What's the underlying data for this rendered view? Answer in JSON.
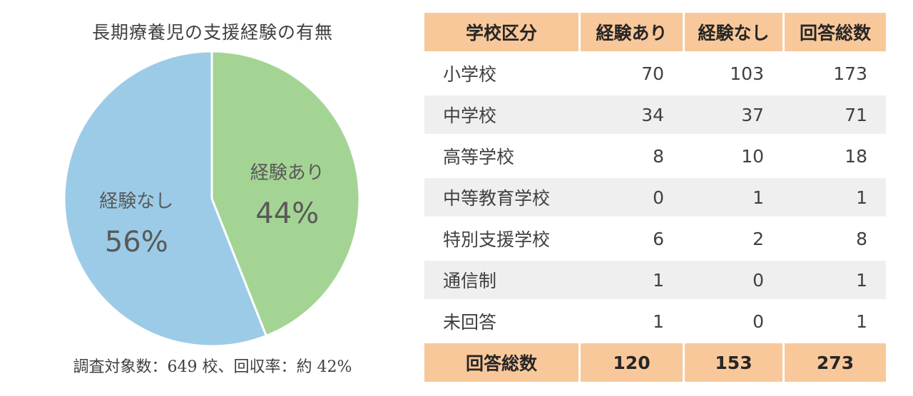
{
  "chart_data": {
    "type": "pie",
    "title": "長期療養児の支援経験の有無",
    "slices": [
      {
        "label": "経験あり",
        "value": 44,
        "display": "44%",
        "color": "#a3d494"
      },
      {
        "label": "経験なし",
        "value": 56,
        "display": "56%",
        "color": "#9ccbe7"
      }
    ],
    "footnote": "調査対象数：649 校、回収率：約 42%"
  },
  "table": {
    "headers": [
      "学校区分",
      "経験あり",
      "経験なし",
      "回答総数"
    ],
    "rows": [
      [
        "小学校",
        "70",
        "103",
        "173"
      ],
      [
        "中学校",
        "34",
        "37",
        "71"
      ],
      [
        "高等学校",
        "8",
        "10",
        "18"
      ],
      [
        "中等教育学校",
        "0",
        "1",
        "1"
      ],
      [
        "特別支援学校",
        "6",
        "2",
        "8"
      ],
      [
        "通信制",
        "1",
        "0",
        "1"
      ],
      [
        "未回答",
        "1",
        "0",
        "1"
      ]
    ],
    "total": [
      "回答総数",
      "120",
      "153",
      "273"
    ]
  },
  "colors": {
    "header_bg": "#f9c89a",
    "row_alt_bg": "#efefef",
    "pie_yes": "#a3d494",
    "pie_no": "#9ccbe7"
  }
}
